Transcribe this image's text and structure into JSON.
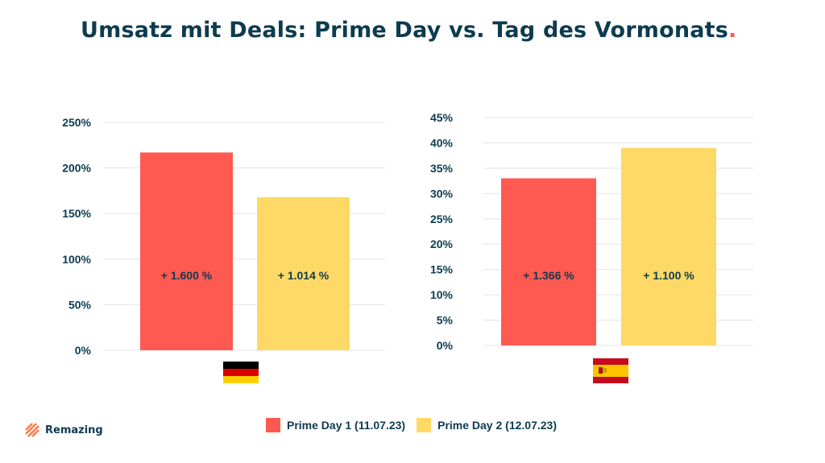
{
  "title": "Umsatz mit Deals: Prime Day vs. Tag des Vormonats",
  "title_dot": ".",
  "colors": {
    "series1": "#ff5a52",
    "series2": "#ffd966",
    "text": "#0d3b4f",
    "grid": "#e4e4e4"
  },
  "chart_data": [
    {
      "type": "bar",
      "country_flag": "germany-flag",
      "categories": [
        "Prime Day 1 (11.07.23)",
        "Prime Day 2 (12.07.23)"
      ],
      "values": [
        217,
        168
      ],
      "bar_labels": [
        "+ 1.600 %",
        "+ 1.014 %"
      ],
      "yticks": [
        "0%",
        "50%",
        "100%",
        "150%",
        "200%",
        "250%"
      ],
      "ylim": [
        0,
        250
      ]
    },
    {
      "type": "bar",
      "country_flag": "spain-flag",
      "categories": [
        "Prime Day 1 (11.07.23)",
        "Prime Day 2 (12.07.23)"
      ],
      "values": [
        33,
        39
      ],
      "bar_labels": [
        "+ 1.366 %",
        "+ 1.100 %"
      ],
      "yticks": [
        "0%",
        "5%",
        "10%",
        "15%",
        "20%",
        "25%",
        "30%",
        "35%",
        "40%",
        "45%"
      ],
      "ylim": [
        0,
        45
      ]
    }
  ],
  "legend": [
    {
      "label": "Prime Day 1 (11.07.23)",
      "color": "#ff5a52"
    },
    {
      "label": "Prime Day 2 (12.07.23)",
      "color": "#ffd966"
    }
  ],
  "logo": {
    "text": "Remazing",
    "icon": "remazing-logo-icon"
  }
}
